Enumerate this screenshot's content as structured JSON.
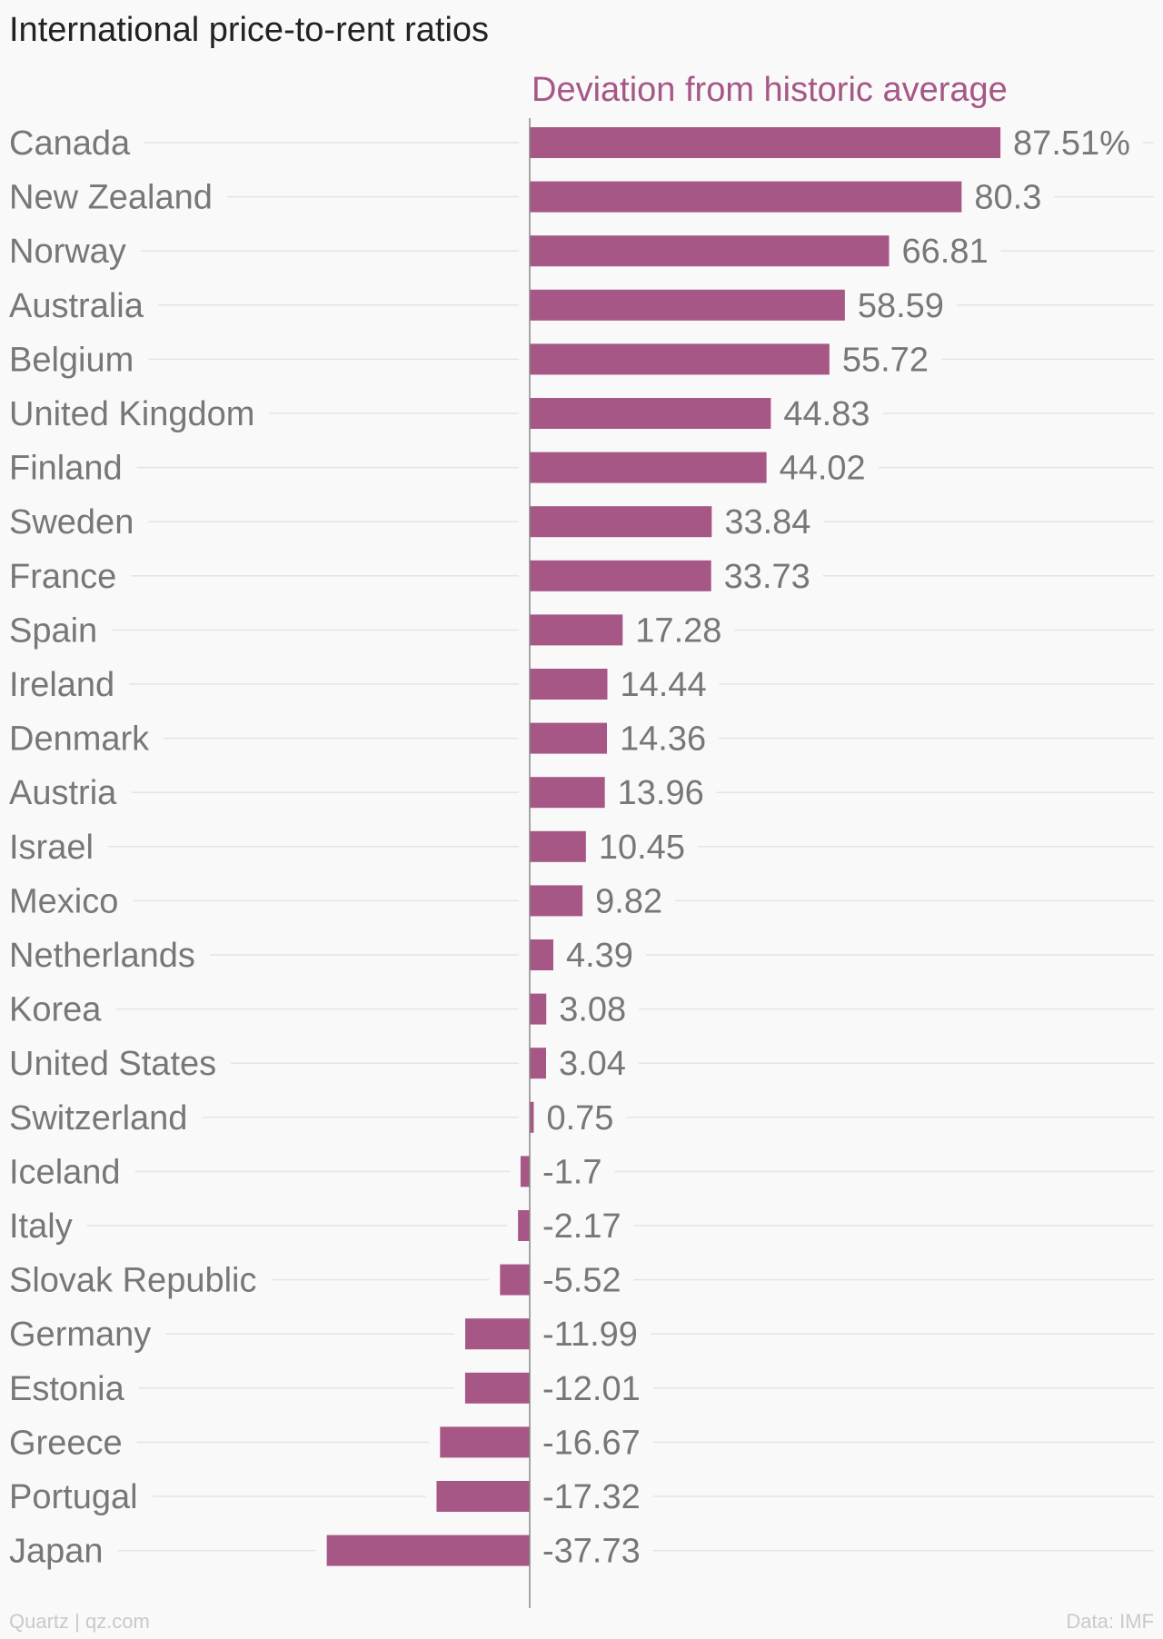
{
  "title": "International price-to-rent ratios",
  "footer": {
    "source_left": "Quartz | qz.com",
    "source_right": "Data: IMF"
  },
  "colors": {
    "bar": "#a65786",
    "series_label": "#a65786",
    "category_text": "#777777",
    "value_text": "#777777",
    "gridline": "#e4e4e4",
    "axis": "#888888"
  },
  "chart_data": {
    "type": "bar",
    "orientation": "horizontal",
    "title": "International price-to-rent ratios",
    "xlabel": "",
    "ylabel": "",
    "xlim": [
      -45,
      88
    ],
    "grid": true,
    "series": [
      {
        "name": "Deviation from historic average",
        "values": [
          87.51,
          80.3,
          66.81,
          58.59,
          55.72,
          44.83,
          44.02,
          33.84,
          33.73,
          17.28,
          14.44,
          14.36,
          13.96,
          10.45,
          9.82,
          4.39,
          3.08,
          3.04,
          0.75,
          -1.7,
          -2.17,
          -5.52,
          -11.99,
          -12.01,
          -16.67,
          -17.32,
          -37.73
        ],
        "value_labels": [
          "87.51%",
          "80.3",
          "66.81",
          "58.59",
          "55.72",
          "44.83",
          "44.02",
          "33.84",
          "33.73",
          "17.28",
          "14.44",
          "14.36",
          "13.96",
          "10.45",
          "9.82",
          "4.39",
          "3.08",
          "3.04",
          "0.75",
          "-1.7",
          "-2.17",
          "-5.52",
          "-11.99",
          "-12.01",
          "-16.67",
          "-17.32",
          "-37.73"
        ]
      }
    ],
    "categories": [
      "Canada",
      "New Zealand",
      "Norway",
      "Australia",
      "Belgium",
      "United Kingdom",
      "Finland",
      "Sweden",
      "France",
      "Spain",
      "Ireland",
      "Denmark",
      "Austria",
      "Israel",
      "Mexico",
      "Netherlands",
      "Korea",
      "United States",
      "Switzerland",
      "Iceland",
      "Italy",
      "Slovak Republic",
      "Germany",
      "Estonia",
      "Greece",
      "Portugal",
      "Japan"
    ]
  }
}
